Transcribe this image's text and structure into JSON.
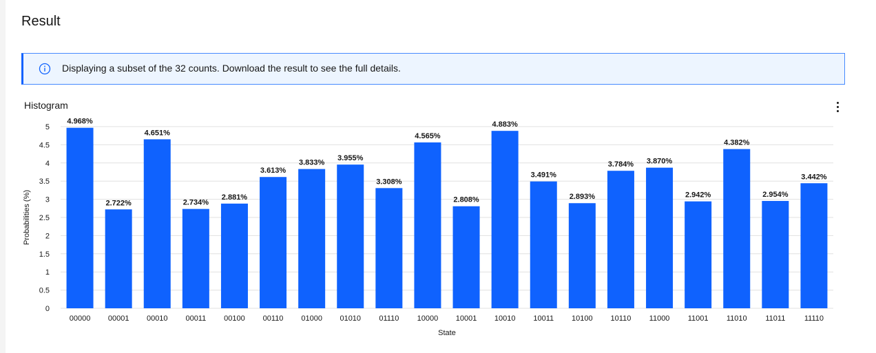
{
  "page": {
    "title": "Result"
  },
  "notice": {
    "text": "Displaying a subset of the 32 counts. Download the result to see the full details.",
    "icon": "info-icon"
  },
  "chart": {
    "title": "Histogram",
    "menu_icon": "overflow-menu-icon"
  },
  "colors": {
    "bar": "#0f62fe",
    "accent": "#0f62fe",
    "notice_bg": "#edf5ff",
    "grid": "#e0e0e0"
  },
  "chart_data": {
    "type": "bar",
    "title": "Histogram",
    "xlabel": "State",
    "ylabel": "Probabilities (%)",
    "ylim": [
      0,
      5
    ],
    "yticks": [
      "0",
      "0.5",
      "1",
      "1.5",
      "2",
      "2.5",
      "3",
      "3.5",
      "4",
      "4.5",
      "5"
    ],
    "grid": true,
    "categories": [
      "00000",
      "00001",
      "00010",
      "00011",
      "00100",
      "00110",
      "01000",
      "01010",
      "01110",
      "10000",
      "10001",
      "10010",
      "10011",
      "10100",
      "10110",
      "11000",
      "11001",
      "11010",
      "11011",
      "11110"
    ],
    "values": [
      4.968,
      2.722,
      4.651,
      2.734,
      2.881,
      3.613,
      3.833,
      3.955,
      3.308,
      4.565,
      2.808,
      4.883,
      3.491,
      2.893,
      3.784,
      3.87,
      2.942,
      4.382,
      2.954,
      3.442
    ],
    "data_labels": [
      "4.968%",
      "2.722%",
      "4.651%",
      "2.734%",
      "2.881%",
      "3.613%",
      "3.833%",
      "3.955%",
      "3.308%",
      "4.565%",
      "2.808%",
      "4.883%",
      "3.491%",
      "2.893%",
      "3.784%",
      "3.870%",
      "2.942%",
      "4.382%",
      "2.954%",
      "3.442%"
    ]
  }
}
